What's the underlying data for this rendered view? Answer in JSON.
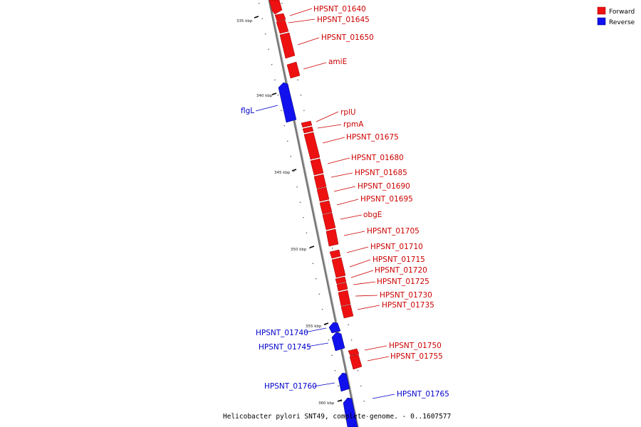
{
  "colors": {
    "forward": "#ee1111",
    "reverse": "#1111ee",
    "backbone": "#888888"
  },
  "legend": {
    "forward_label": "Forward",
    "reverse_label": "Reverse"
  },
  "caption": "Helicobacter pylori SNT49, complete genome. - 0..1607577",
  "kbp_labels": [
    "335 kbp",
    "340 kbp",
    "345 kbp",
    "350 kbp",
    "355 kbp",
    "360 kbp"
  ],
  "genes": [
    {
      "name": "HPSNT_01640",
      "strand": "forward"
    },
    {
      "name": "HPSNT_01645",
      "strand": "forward"
    },
    {
      "name": "HPSNT_01650",
      "strand": "forward"
    },
    {
      "name": "amiE",
      "strand": "forward"
    },
    {
      "name": "flgL",
      "strand": "reverse"
    },
    {
      "name": "rplU",
      "strand": "forward"
    },
    {
      "name": "rpmA",
      "strand": "forward"
    },
    {
      "name": "HPSNT_01675",
      "strand": "forward"
    },
    {
      "name": "HPSNT_01680",
      "strand": "forward"
    },
    {
      "name": "HPSNT_01685",
      "strand": "forward"
    },
    {
      "name": "HPSNT_01690",
      "strand": "forward"
    },
    {
      "name": "HPSNT_01695",
      "strand": "forward"
    },
    {
      "name": "obgE",
      "strand": "forward"
    },
    {
      "name": "HPSNT_01705",
      "strand": "forward"
    },
    {
      "name": "HPSNT_01710",
      "strand": "forward"
    },
    {
      "name": "HPSNT_01715",
      "strand": "forward"
    },
    {
      "name": "HPSNT_01720",
      "strand": "forward"
    },
    {
      "name": "HPSNT_01725",
      "strand": "forward"
    },
    {
      "name": "HPSNT_01730",
      "strand": "forward"
    },
    {
      "name": "HPSNT_01735",
      "strand": "forward"
    },
    {
      "name": "HPSNT_01740",
      "strand": "reverse"
    },
    {
      "name": "HPSNT_01745",
      "strand": "reverse"
    },
    {
      "name": "HPSNT_01750",
      "strand": "forward"
    },
    {
      "name": "HPSNT_01755",
      "strand": "forward"
    },
    {
      "name": "HPSNT_01760",
      "strand": "reverse"
    },
    {
      "name": "HPSNT_01765",
      "strand": "reverse"
    }
  ]
}
